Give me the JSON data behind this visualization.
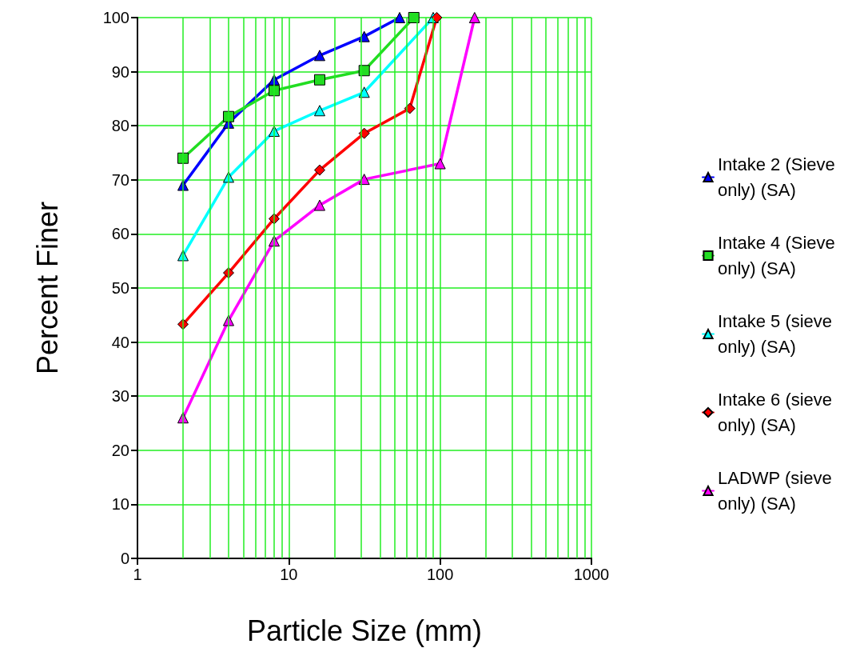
{
  "chart_data": {
    "type": "line",
    "xlabel": "Particle Size (mm)",
    "ylabel": "Percent Finer",
    "log": "x",
    "xlim": [
      1,
      1000
    ],
    "xticks": [
      1,
      {
        "value": 2,
        "label": null
      },
      {
        "value": 3,
        "label": null
      },
      {
        "value": 4,
        "label": null
      },
      {
        "value": 5,
        "label": null
      },
      {
        "value": 6,
        "label": null
      },
      {
        "value": 7,
        "label": null
      },
      {
        "value": 8,
        "label": null
      },
      {
        "value": 9,
        "label": null
      },
      10,
      {
        "value": 20,
        "label": null
      },
      {
        "value": 30,
        "label": null
      },
      {
        "value": 40,
        "label": null
      },
      {
        "value": 50,
        "label": null
      },
      {
        "value": 60,
        "label": null
      },
      {
        "value": 70,
        "label": null
      },
      {
        "value": 80,
        "label": null
      },
      {
        "value": 90,
        "label": null
      },
      100,
      {
        "value": 200,
        "label": null
      },
      {
        "value": 300,
        "label": null
      },
      {
        "value": 400,
        "label": null
      },
      {
        "value": 500,
        "label": null
      },
      {
        "value": 600,
        "label": null
      },
      {
        "value": 700,
        "label": null
      },
      {
        "value": 800,
        "label": null
      },
      {
        "value": 900,
        "label": null
      },
      1000
    ],
    "ylim": [
      0,
      100
    ],
    "yticks": [
      0,
      10,
      20,
      30,
      40,
      50,
      60,
      70,
      80,
      90,
      100
    ],
    "grid": true,
    "legend": "right",
    "line_style": "solid",
    "series": [
      {
        "name": "Intake 2 (Sieve only) (SA)",
        "color": "#0000ff",
        "marker": "triangle",
        "x": [
          2,
          4,
          8,
          16,
          31.5,
          54
        ],
        "values": [
          69,
          80.5,
          88.5,
          93,
          96.5,
          100
        ]
      },
      {
        "name": "Intake 4 (Sieve only) (SA)",
        "color": "#22dd22",
        "marker": "square",
        "x": [
          2,
          4,
          8,
          16,
          31.5,
          67
        ],
        "values": [
          74,
          81.7,
          86.5,
          88.5,
          90.2,
          100
        ]
      },
      {
        "name": "Intake 5 (sieve only) (SA)",
        "color": "#00ffff",
        "marker": "triangle",
        "x": [
          2,
          4,
          8,
          16,
          31.5,
          90
        ],
        "values": [
          56,
          70.5,
          79,
          82.8,
          86.2,
          100
        ]
      },
      {
        "name": "Intake 6 (sieve only) (SA)",
        "color": "#ff0000",
        "marker": "diamond",
        "x": [
          2,
          4,
          8,
          16,
          31.5,
          63,
          95
        ],
        "values": [
          43.3,
          52.8,
          62.8,
          71.8,
          78.6,
          83.2,
          100
        ]
      },
      {
        "name": "LADWP (sieve only) (SA)",
        "color": "#ff00ff",
        "marker": "triangle",
        "x": [
          2,
          4,
          8,
          16,
          31.5,
          100,
          169
        ],
        "values": [
          26,
          44,
          58.7,
          65.3,
          70.1,
          73,
          100
        ]
      }
    ]
  }
}
